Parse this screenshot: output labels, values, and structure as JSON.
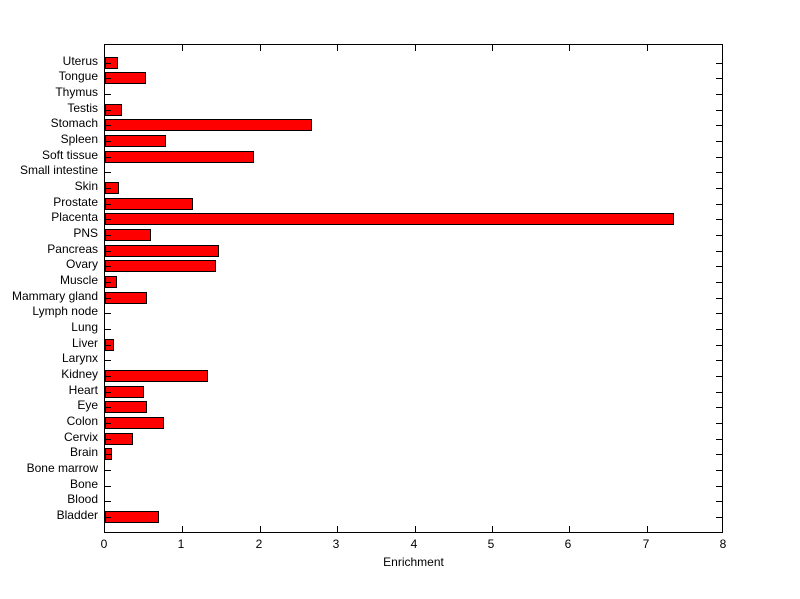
{
  "chart_data": {
    "type": "bar",
    "orientation": "horizontal",
    "title": "",
    "xlabel": "Enrichment",
    "ylabel": "",
    "xlim": [
      0,
      8
    ],
    "xticks": [
      0,
      1,
      2,
      3,
      4,
      5,
      6,
      7,
      8
    ],
    "grid": false,
    "legend": null,
    "bar_color": "#ff0000",
    "bar_edge_color": "#000000",
    "axis_color": "#000000",
    "background_color": "#ffffff",
    "categories": [
      "Uterus",
      "Tongue",
      "Thymus",
      "Testis",
      "Stomach",
      "Spleen",
      "Soft tissue",
      "Small intestine",
      "Skin",
      "Prostate",
      "Placenta",
      "PNS",
      "Pancreas",
      "Ovary",
      "Muscle",
      "Mammary gland",
      "Lymph node",
      "Lung",
      "Liver",
      "Larynx",
      "Kidney",
      "Heart",
      "Eye",
      "Colon",
      "Cervix",
      "Brain",
      "Bone marrow",
      "Bone",
      "Blood",
      "Bladder"
    ],
    "values": [
      0.17,
      0.53,
      0,
      0.22,
      2.67,
      0.79,
      1.93,
      0,
      0.18,
      1.14,
      7.35,
      0.59,
      1.47,
      1.43,
      0.16,
      0.54,
      0,
      0,
      0.12,
      0,
      1.33,
      0.5,
      0.54,
      0.76,
      0.36,
      0.09,
      0,
      0,
      0,
      0.7
    ]
  }
}
